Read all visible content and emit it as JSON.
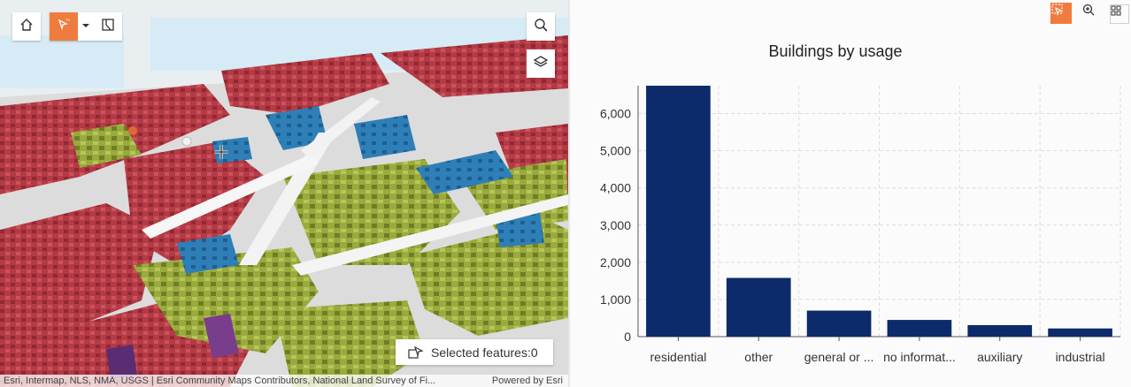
{
  "map": {
    "selected_label": "Selected features:",
    "selected_count": "0",
    "attribution_left": "Esri, Intermap, NLS, NMA, USGS | Esri Community Maps Contributors, National Land Survey of Fi...",
    "attribution_right": "Powered by Esri",
    "icons": {
      "home": "home-icon",
      "select": "select-icon",
      "dropdown": "chevron-down-icon",
      "sketch": "sketch-icon",
      "search": "search-icon",
      "layers": "layers-icon"
    },
    "colors": {
      "residential": "#b53a45",
      "other": "#9aaa3c",
      "general": "#2e7fb8",
      "accent": "#f07b3f"
    }
  },
  "chart_controls": {
    "icons": [
      "selection-filter-icon",
      "zoom-icon",
      "grid-icon"
    ],
    "accent": "#f07b3f"
  },
  "chart_data": {
    "type": "bar",
    "title": "Buildings by usage",
    "categories": [
      "residential",
      "other",
      "general or ...",
      "no informat...",
      "auxiliary",
      "industrial"
    ],
    "values": [
      6750,
      1580,
      700,
      450,
      310,
      220
    ],
    "ylim": [
      0,
      6750
    ],
    "yticks": [
      0,
      1000,
      2000,
      3000,
      4000,
      5000,
      6000
    ],
    "ytick_labels": [
      "0",
      "1,000",
      "2,000",
      "3,000",
      "4,000",
      "5,000",
      "6,000"
    ],
    "xlabel": "",
    "ylabel": "",
    "bar_color": "#0d2a6b",
    "grid": true
  }
}
